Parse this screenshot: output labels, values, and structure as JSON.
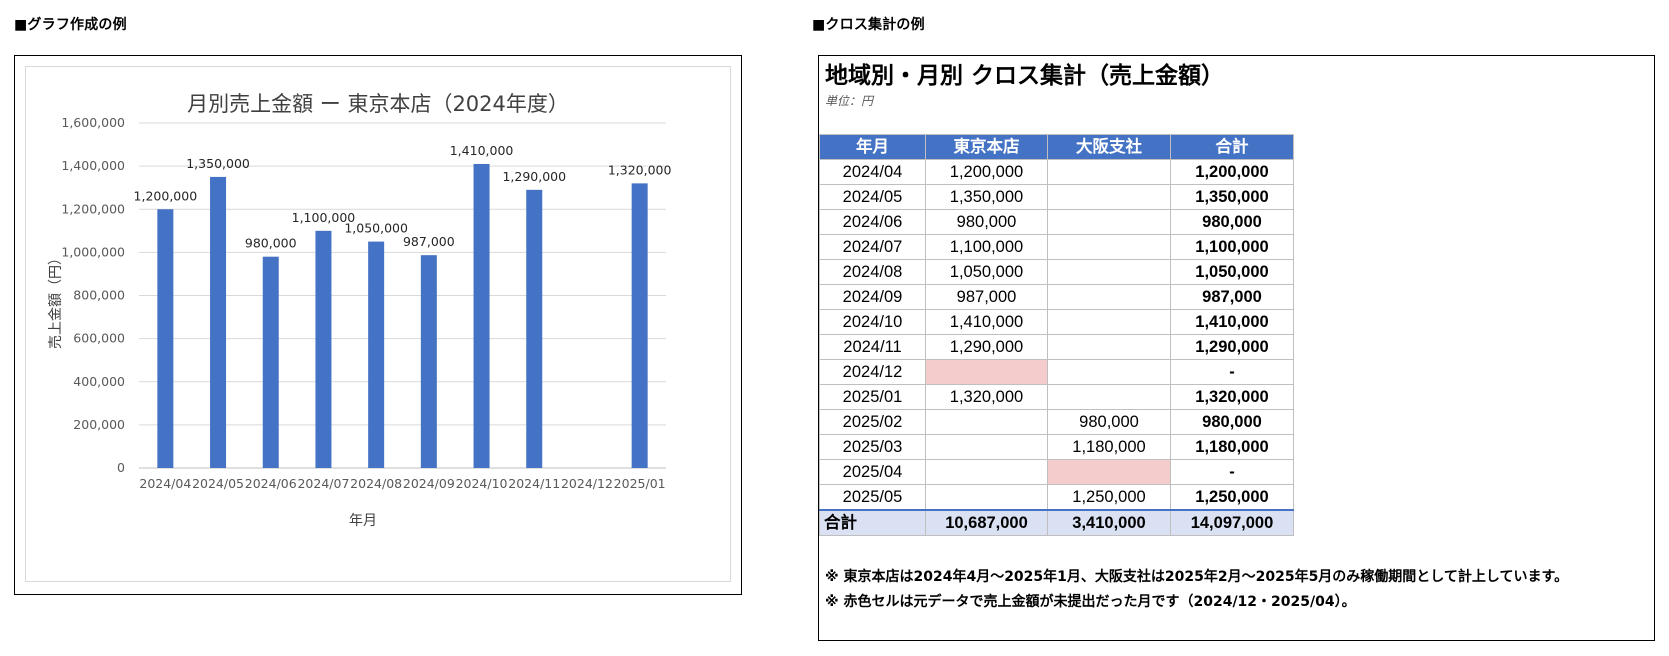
{
  "left_heading": "■グラフ作成の例",
  "right_heading": "■クロス集計の例",
  "chart_data": {
    "type": "bar",
    "title": "月別売上金額 ー 東京本店（2024年度）",
    "xlabel": "年月",
    "ylabel": "売上金額（円）",
    "ylim": [
      0,
      1600000
    ],
    "yticks": [
      "0",
      "200,000",
      "400,000",
      "600,000",
      "800,000",
      "1,000,000",
      "1,200,000",
      "1,400,000",
      "1,600,000"
    ],
    "categories": [
      "2024/04",
      "2024/05",
      "2024/06",
      "2024/07",
      "2024/08",
      "2024/09",
      "2024/10",
      "2024/11",
      "2024/12",
      "2025/01"
    ],
    "values": [
      1200000,
      1350000,
      980000,
      1100000,
      1050000,
      987000,
      1410000,
      1290000,
      null,
      1320000
    ],
    "data_labels": [
      "1,200,000",
      "1,350,000",
      "980,000",
      "1,100,000",
      "1,050,000",
      "987,000",
      "1,410,000",
      "1,290,000",
      "",
      "1,320,000"
    ],
    "bar_color": "#4472c4",
    "grid": true,
    "legend": false
  },
  "cross": {
    "title": "地域別・月別 クロス集計（売上金額）",
    "unit": "単位：円",
    "headers": [
      "年月",
      "東京本店",
      "大阪支社",
      "合計"
    ],
    "rows": [
      {
        "month": "2024/04",
        "tokyo": "1,200,000",
        "osaka": "",
        "total": "1,200,000",
        "tokyo_missing": false,
        "osaka_missing": false
      },
      {
        "month": "2024/05",
        "tokyo": "1,350,000",
        "osaka": "",
        "total": "1,350,000",
        "tokyo_missing": false,
        "osaka_missing": false
      },
      {
        "month": "2024/06",
        "tokyo": "980,000",
        "osaka": "",
        "total": "980,000",
        "tokyo_missing": false,
        "osaka_missing": false
      },
      {
        "month": "2024/07",
        "tokyo": "1,100,000",
        "osaka": "",
        "total": "1,100,000",
        "tokyo_missing": false,
        "osaka_missing": false
      },
      {
        "month": "2024/08",
        "tokyo": "1,050,000",
        "osaka": "",
        "total": "1,050,000",
        "tokyo_missing": false,
        "osaka_missing": false
      },
      {
        "month": "2024/09",
        "tokyo": "987,000",
        "osaka": "",
        "total": "987,000",
        "tokyo_missing": false,
        "osaka_missing": false
      },
      {
        "month": "2024/10",
        "tokyo": "1,410,000",
        "osaka": "",
        "total": "1,410,000",
        "tokyo_missing": false,
        "osaka_missing": false
      },
      {
        "month": "2024/11",
        "tokyo": "1,290,000",
        "osaka": "",
        "total": "1,290,000",
        "tokyo_missing": false,
        "osaka_missing": false
      },
      {
        "month": "2024/12",
        "tokyo": "",
        "osaka": "",
        "total": "-",
        "tokyo_missing": true,
        "osaka_missing": false
      },
      {
        "month": "2025/01",
        "tokyo": "1,320,000",
        "osaka": "",
        "total": "1,320,000",
        "tokyo_missing": false,
        "osaka_missing": false
      },
      {
        "month": "2025/02",
        "tokyo": "",
        "osaka": "980,000",
        "total": "980,000",
        "tokyo_missing": false,
        "osaka_missing": false
      },
      {
        "month": "2025/03",
        "tokyo": "",
        "osaka": "1,180,000",
        "total": "1,180,000",
        "tokyo_missing": false,
        "osaka_missing": false
      },
      {
        "month": "2025/04",
        "tokyo": "",
        "osaka": "",
        "total": "-",
        "tokyo_missing": false,
        "osaka_missing": true
      },
      {
        "month": "2025/05",
        "tokyo": "",
        "osaka": "1,250,000",
        "total": "1,250,000",
        "tokyo_missing": false,
        "osaka_missing": false
      }
    ],
    "grand_total": {
      "label": "合計",
      "tokyo": "10,687,000",
      "osaka": "3,410,000",
      "total": "14,097,000"
    },
    "header_color": "#4472c4",
    "total_row_color": "#d9e1f2",
    "missing_color": "#f4cccc",
    "notes": [
      "※ 東京本店は2024年4月～2025年1月、大阪支社は2025年2月～2025年5月のみ稼働期間として計上しています。",
      "※ 赤色セルは元データで売上金額が未提出だった月です（2024/12・2025/04）。"
    ]
  }
}
